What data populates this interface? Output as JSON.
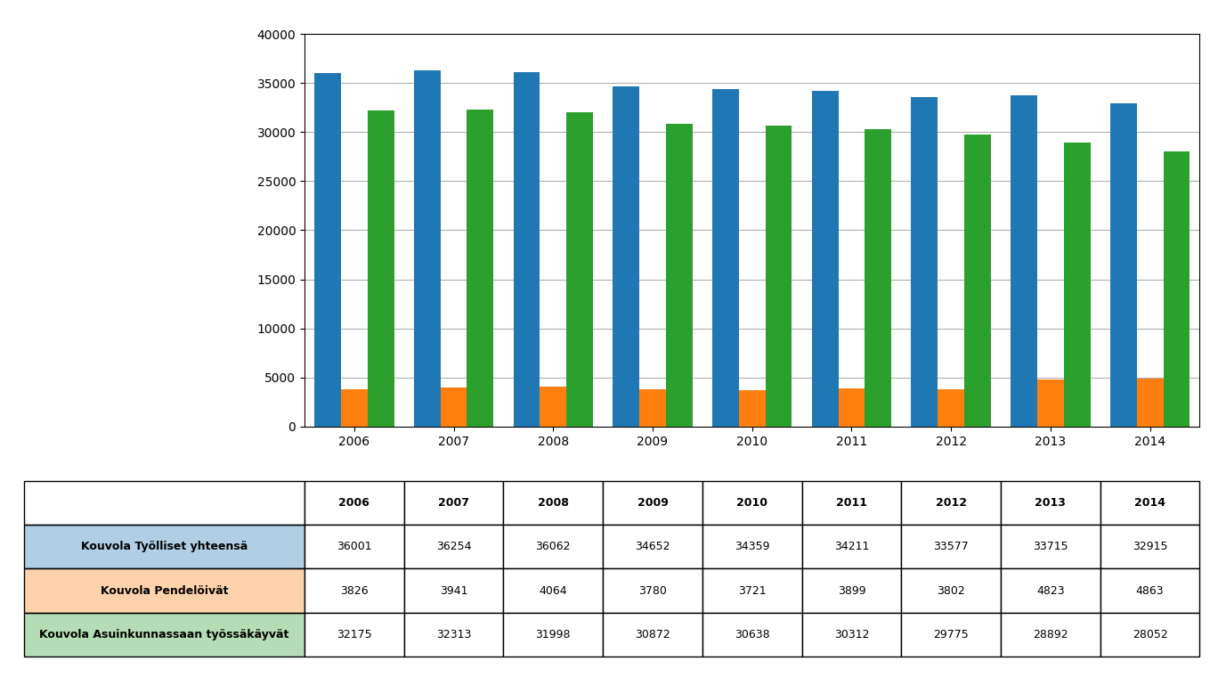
{
  "chart_data": {
    "type": "bar",
    "categories": [
      "2006",
      "2007",
      "2008",
      "2009",
      "2010",
      "2011",
      "2012",
      "2013",
      "2014"
    ],
    "series": [
      {
        "name": "Kouvola Työlliset yhteensä",
        "values": [
          36001,
          36254,
          36062,
          34652,
          34359,
          34211,
          33577,
          33715,
          32915
        ]
      },
      {
        "name": "Kouvola Pendelöivät",
        "values": [
          3826,
          3941,
          4064,
          3780,
          3721,
          3899,
          3802,
          4823,
          4863
        ]
      },
      {
        "name": "Kouvola Asuinkunnassaan työssäkäyvät",
        "values": [
          32175,
          32313,
          31998,
          30872,
          30638,
          30312,
          29775,
          28892,
          28052
        ]
      }
    ],
    "ylim": [
      0,
      40000
    ],
    "yticks": [
      0,
      5000,
      10000,
      15000,
      20000,
      25000,
      30000,
      35000,
      40000
    ],
    "grid": true
  }
}
